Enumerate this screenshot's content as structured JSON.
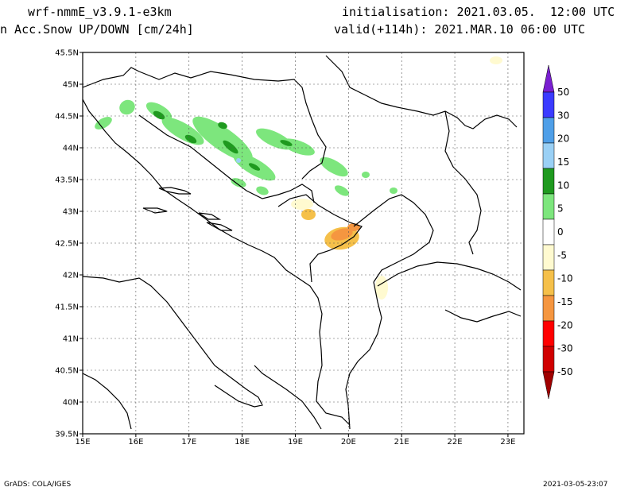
{
  "header": {
    "model": "wrf-nmmE_v3.9.1-e3km",
    "field": "n Acc.Snow UP/DOWN [cm/24h]",
    "init": "initialisation: 2021.03.05.  12:00 UTC",
    "valid": "valid(+114h): 2021.MAR.10 06:00 UTC"
  },
  "map": {
    "lon_ticks": [
      "15E",
      "16E",
      "17E",
      "18E",
      "19E",
      "20E",
      "21E",
      "22E",
      "23E"
    ],
    "lat_ticks": [
      "45.5N",
      "45N",
      "44.5N",
      "44N",
      "43.5N",
      "43N",
      "42.5N",
      "42N",
      "41.5N",
      "41N",
      "40.5N",
      "40N",
      "39.5N"
    ],
    "lon_range": [
      15,
      23.3
    ],
    "lat_range": [
      39.5,
      45.5
    ],
    "grid": true
  },
  "colorbar": {
    "labels": [
      "50",
      "30",
      "20",
      "15",
      "10",
      "5",
      "0",
      "-5",
      "-10",
      "-15",
      "-20",
      "-30",
      "-50"
    ],
    "colors": [
      "#7a1fd1",
      "#3b3bff",
      "#4f9fe8",
      "#9ad0f5",
      "#1f9a1f",
      "#7de67d",
      "#ffffff",
      "#fffad0",
      "#f5c04a",
      "#f59640",
      "#ff0000",
      "#d00000",
      "#a00000"
    ]
  },
  "footer": {
    "left": "GrADS: COLA/IGES",
    "right": "2021-03-05-23:07"
  }
}
